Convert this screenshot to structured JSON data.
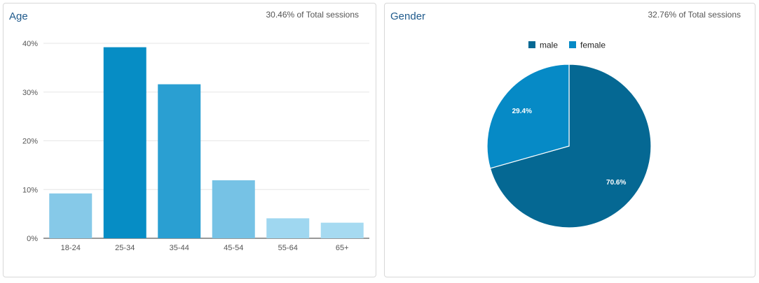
{
  "age_panel": {
    "title": "Age",
    "subtitle": "30.46% of Total sessions"
  },
  "gender_panel": {
    "title": "Gender",
    "subtitle": "32.76% of Total sessions"
  },
  "chart_data": [
    {
      "type": "bar",
      "title": "Age",
      "categories": [
        "18-24",
        "25-34",
        "35-44",
        "45-54",
        "55-64",
        "65+"
      ],
      "values": [
        9.2,
        39.2,
        31.6,
        11.9,
        4.1,
        3.2
      ],
      "colors": [
        "#86c9e8",
        "#068dc5",
        "#2a9fd2",
        "#76c2e5",
        "#9fd7f0",
        "#a6daf1"
      ],
      "ylim": [
        0,
        40
      ],
      "yticks": [
        0,
        10,
        20,
        30,
        40
      ],
      "ytick_labels": [
        "0%",
        "10%",
        "20%",
        "30%",
        "40%"
      ],
      "grid": true
    },
    {
      "type": "pie",
      "title": "Gender",
      "labels": [
        "male",
        "female"
      ],
      "values": [
        70.6,
        29.4
      ],
      "value_labels": [
        "70.6%",
        "29.4%"
      ],
      "colors": [
        "#056893",
        "#068ac6"
      ],
      "legend_position": "top"
    }
  ]
}
